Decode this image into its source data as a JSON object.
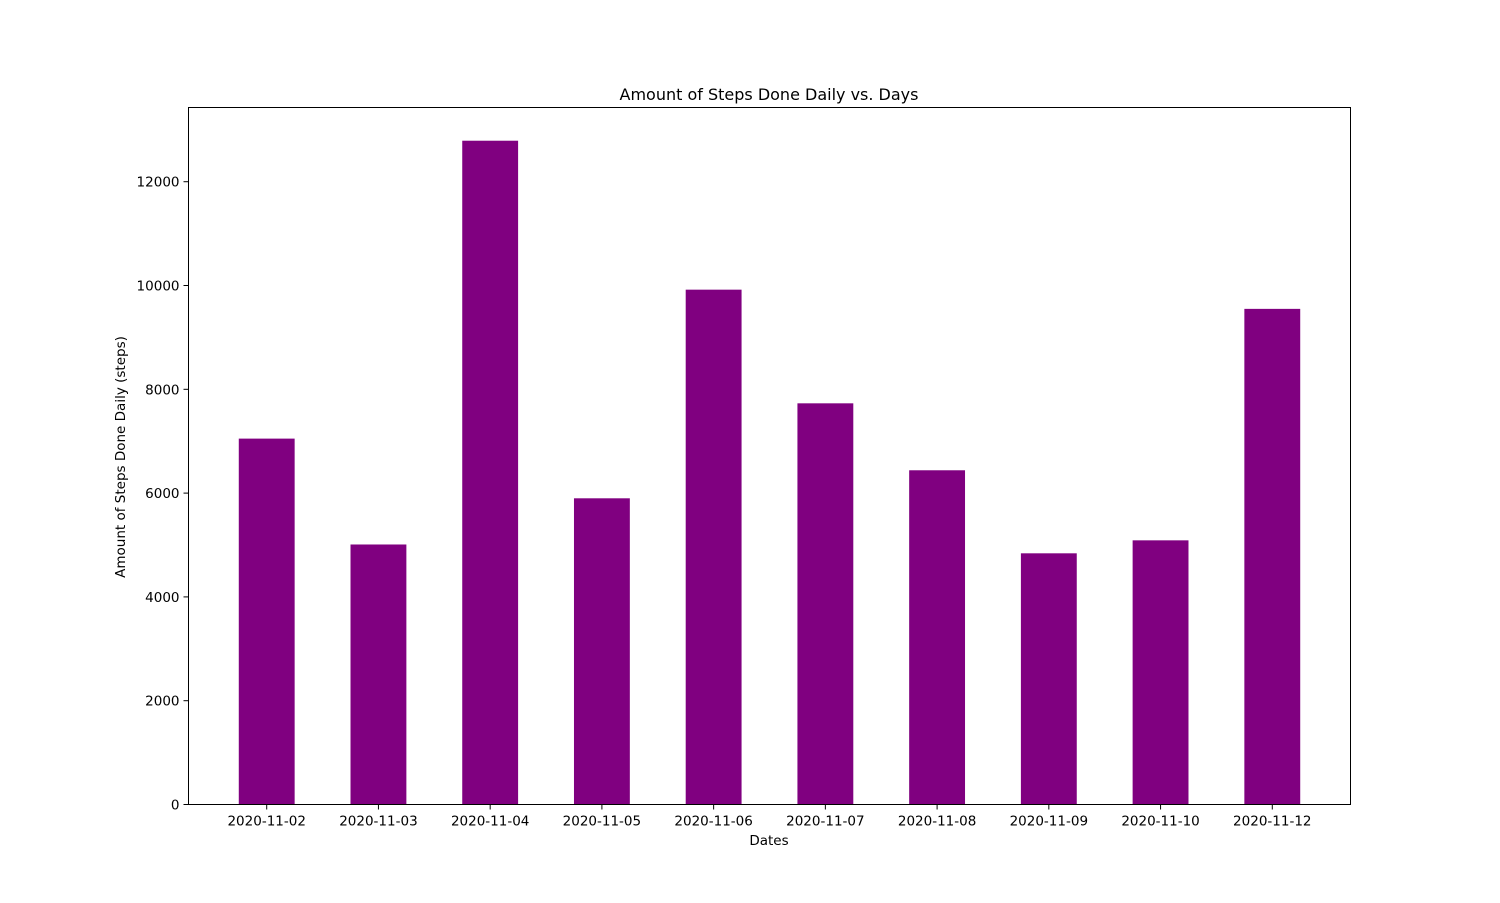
{
  "chart_data": {
    "type": "bar",
    "title": "Amount of Steps Done Daily vs. Days",
    "xlabel": "Dates",
    "ylabel": "Amount of Steps Done Daily (steps)",
    "categories": [
      "2020-11-02",
      "2020-11-03",
      "2020-11-04",
      "2020-11-05",
      "2020-11-06",
      "2020-11-07",
      "2020-11-08",
      "2020-11-09",
      "2020-11-10",
      "2020-11-12"
    ],
    "values": [
      7050,
      5010,
      12790,
      5900,
      9920,
      7730,
      6440,
      4840,
      5090,
      9550
    ],
    "ylim": [
      0,
      13430
    ],
    "yticks": [
      0,
      2000,
      4000,
      6000,
      8000,
      10000,
      12000
    ],
    "bar_color": "#800080",
    "grid": false,
    "legend": "none"
  }
}
